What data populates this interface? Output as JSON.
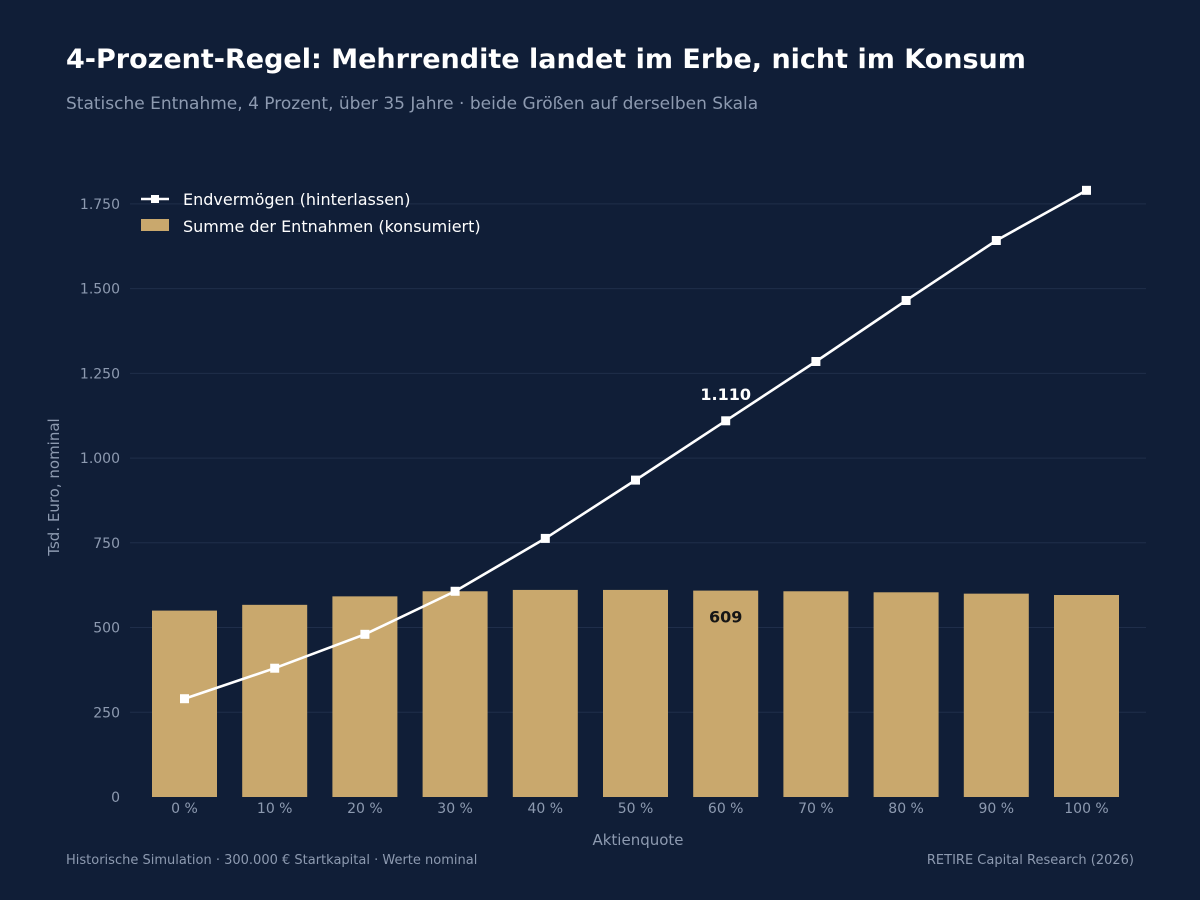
{
  "header": {
    "title": "4-Prozent-Regel: Mehrrendite landet im Erbe, nicht im Konsum",
    "subtitle": "Statische Entnahme, 4 Prozent, über 35 Jahre · beide Größen auf derselben Skala"
  },
  "footer": {
    "source_left": "Historische Simulation · 300.000 € Startkapital · Werte nominal",
    "source_right": "RETIRE Capital Research (2026)"
  },
  "colors": {
    "background": "#101e37",
    "bar": "#c9a86d",
    "line": "#ffffff",
    "grid": "#1f2e4a",
    "muted_text": "#8d9ab0"
  },
  "chart_data": {
    "type": "bar",
    "xlabel": "Aktienquote",
    "ylabel": "Tsd. Euro, nominal",
    "ylim": [
      0,
      1850
    ],
    "yticks": [
      0,
      250,
      500,
      750,
      1000,
      1250,
      1500,
      1750
    ],
    "ytick_labels": [
      "0",
      "250",
      "500",
      "750",
      "1.000",
      "1.250",
      "1.500",
      "1.750"
    ],
    "grid": true,
    "legend_position": "top-left",
    "categories": [
      "0 %",
      "10 %",
      "20 %",
      "30 %",
      "40 %",
      "50 %",
      "60 %",
      "70 %",
      "80 %",
      "90 %",
      "100 %"
    ],
    "series": [
      {
        "name": "Endvermögen (hinterlassen)",
        "type": "line",
        "marker": "square",
        "values": [
          290,
          380,
          480,
          607,
          763,
          935,
          1110,
          1285,
          1465,
          1642,
          1790
        ]
      },
      {
        "name": "Summe der Entnahmen (konsumiert)",
        "type": "bar",
        "values": [
          550,
          567,
          592,
          607,
          611,
          611,
          609,
          607,
          604,
          600,
          596
        ]
      }
    ],
    "annotations": [
      {
        "series": 0,
        "index": 6,
        "text": "1.110",
        "style": "white-above"
      },
      {
        "series": 1,
        "index": 6,
        "text": "609",
        "style": "dark-inside"
      }
    ]
  }
}
